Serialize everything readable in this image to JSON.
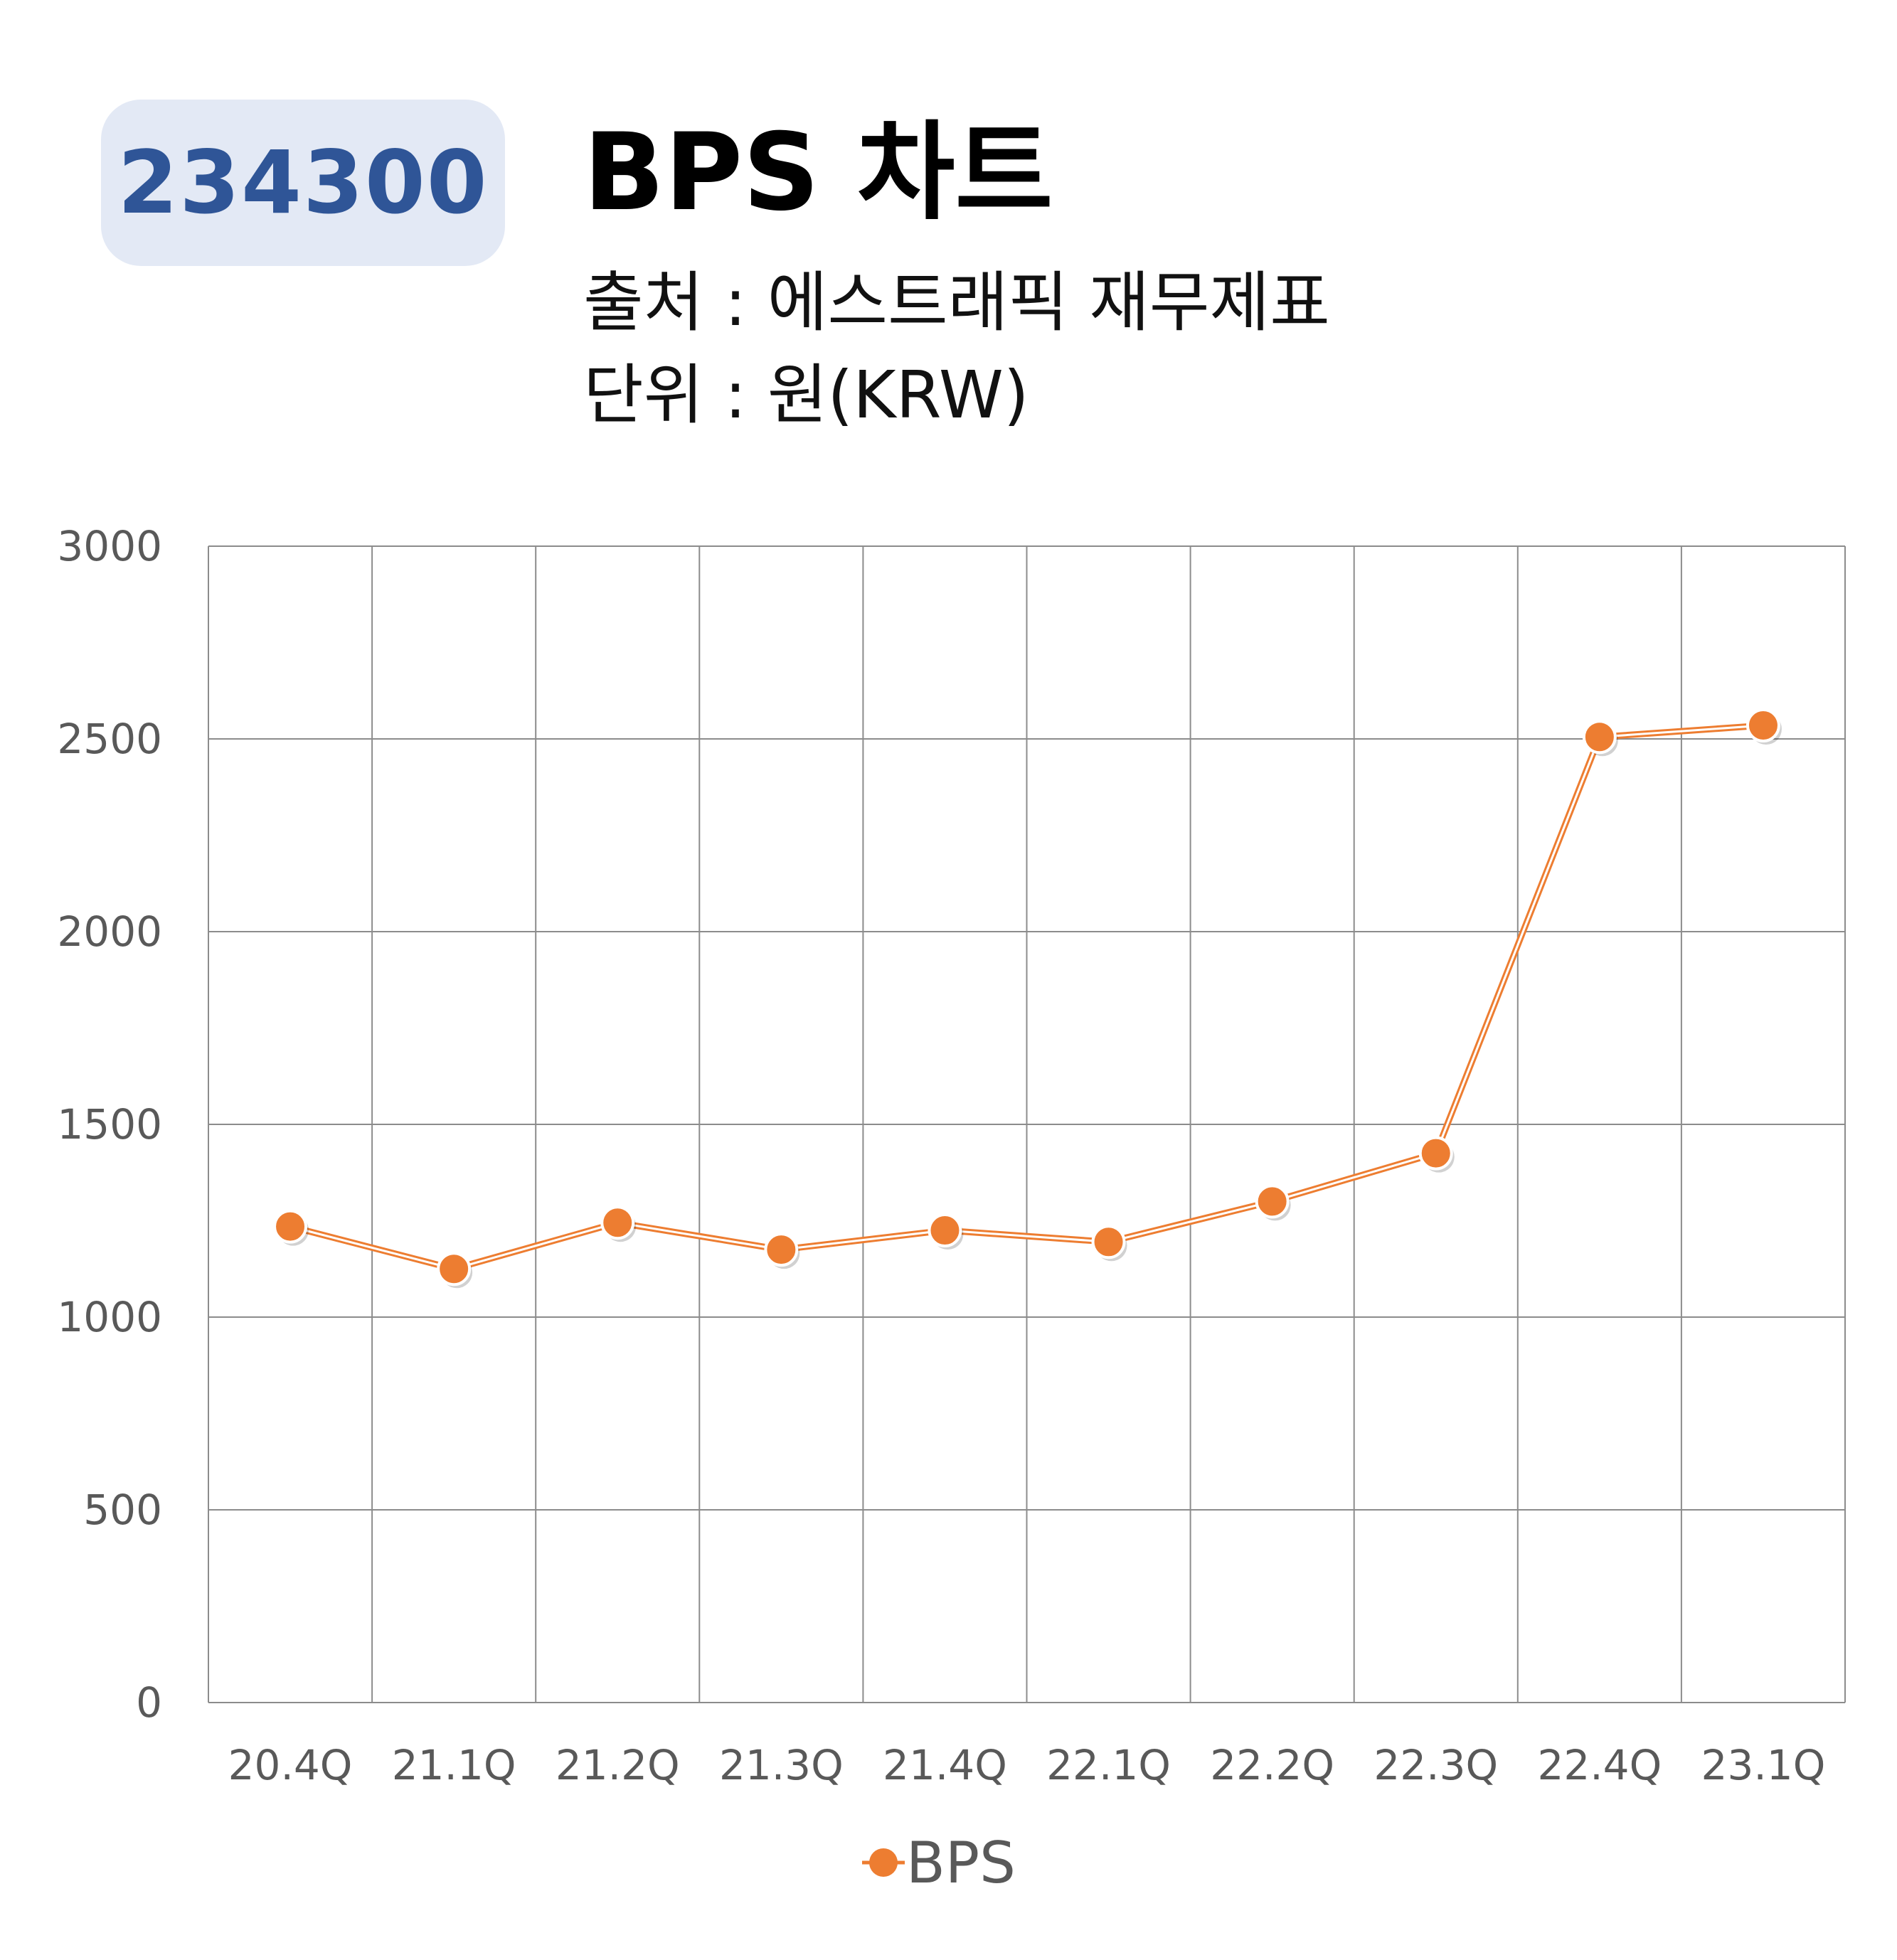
{
  "header": {
    "ticker": "234300",
    "title": "BPS 차트",
    "source": "출처 : 에스트래픽 재무제표",
    "unit": "단위 : 원(KRW)"
  },
  "colors": {
    "badge_bg": "#e3e9f5",
    "badge_text": "#2f5597",
    "series": "#ed7d31",
    "grid": "#8c8c8c",
    "tick_text": "#595959"
  },
  "chart_data": {
    "type": "line",
    "title": "BPS 차트",
    "categories": [
      "20.4Q",
      "21.1Q",
      "21.2Q",
      "21.3Q",
      "21.4Q",
      "22.1Q",
      "22.2Q",
      "22.3Q",
      "22.4Q",
      "23.1Q"
    ],
    "series": [
      {
        "name": "BPS",
        "values": [
          1235,
          1125,
          1245,
          1175,
          1225,
          1195,
          1300,
          1425,
          2505,
          2535
        ]
      }
    ],
    "ylim": [
      0,
      3000
    ],
    "yticks": [
      0,
      500,
      1000,
      1500,
      2000,
      2500,
      3000
    ],
    "grid": true,
    "legend": "bottom"
  }
}
